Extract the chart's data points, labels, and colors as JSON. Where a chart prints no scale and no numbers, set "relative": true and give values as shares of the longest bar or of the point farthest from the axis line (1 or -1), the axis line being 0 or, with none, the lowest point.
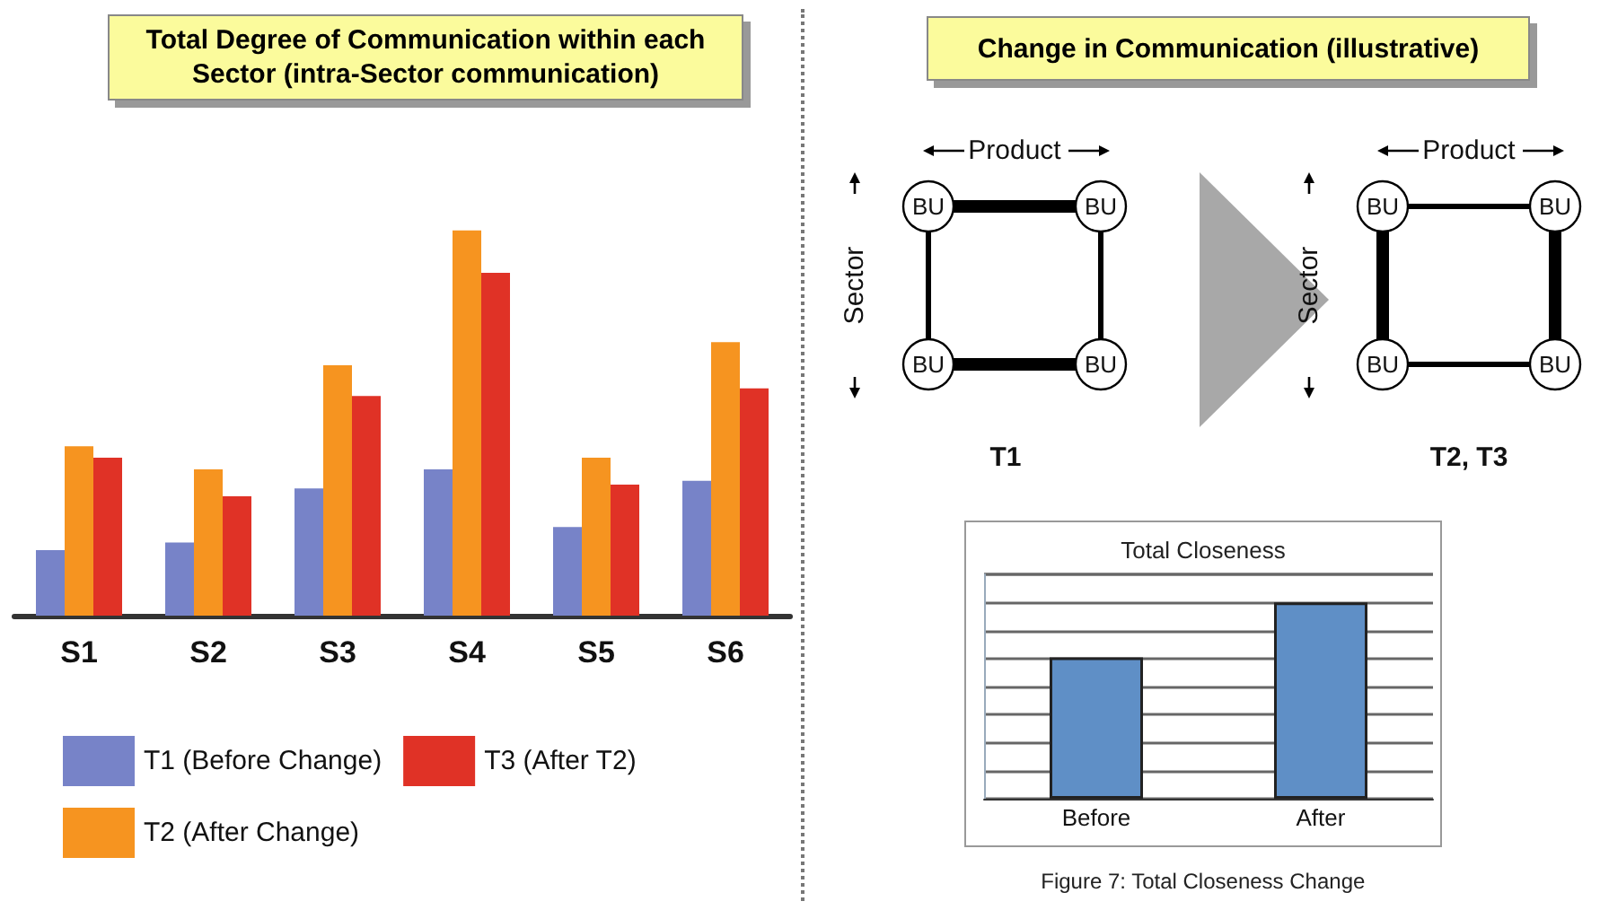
{
  "chart_data": [
    {
      "type": "bar",
      "title": "Total Degree of Communication within each Sector (intra-Sector communication)",
      "relative": true,
      "categories": [
        "S1",
        "S2",
        "S3",
        "S4",
        "S5",
        "S6"
      ],
      "series": [
        {
          "name": "T1 (Before Change)",
          "color": "#7783c8",
          "values": [
            0.17,
            0.19,
            0.33,
            0.38,
            0.23,
            0.35
          ]
        },
        {
          "name": "T2 (After Change)",
          "color": "#f69420",
          "values": [
            0.44,
            0.38,
            0.65,
            1,
            0.41,
            0.71
          ]
        },
        {
          "name": "T3 (After T2)",
          "color": "#e03226",
          "values": [
            0.41,
            0.31,
            0.57,
            0.89,
            0.34,
            0.59
          ]
        }
      ],
      "legend": "bottom left",
      "grid": false
    },
    {
      "type": "other",
      "title": "Change in Communication (illustrative)",
      "annotations": [
        "Product",
        "Sector",
        "BU",
        "BU",
        "BU",
        "BU",
        "T1",
        "Product",
        "Sector",
        "BU",
        "BU",
        "BU",
        "BU",
        "T2, T3"
      ]
    },
    {
      "type": "bar",
      "title": "Total Closeness",
      "relative": true,
      "categories": [
        "Before",
        "After"
      ],
      "values": [
        0.72,
        1
      ],
      "color": "#5f8fc6",
      "grid": "y",
      "annotations": [
        "Figure 7: Total Closeness Change"
      ]
    }
  ]
}
